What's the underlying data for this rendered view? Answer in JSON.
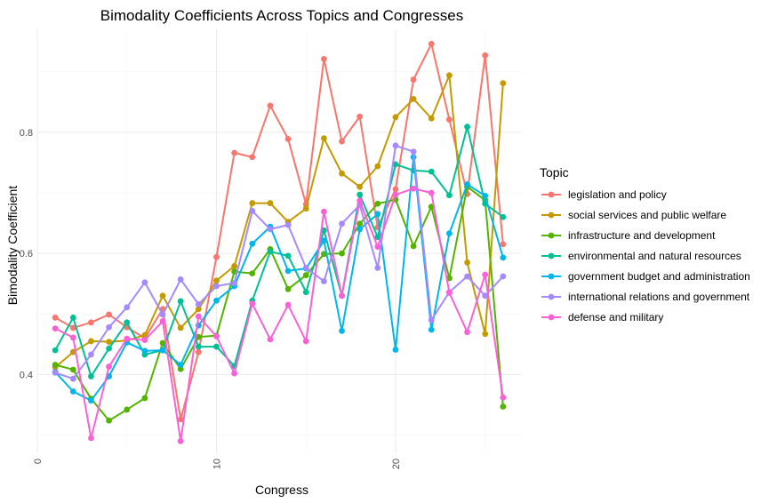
{
  "chart_data": {
    "type": "line",
    "title": "Bimodality Coefficients Across Topics and Congresses",
    "xlabel": "Congress",
    "ylabel": "Bimodality Coefficient",
    "xlim": [
      0,
      27
    ],
    "ylim": [
      0.27,
      0.97
    ],
    "x_ticks": [
      0,
      10,
      20
    ],
    "y_ticks": [
      0.4,
      0.6,
      0.8
    ],
    "grid": true,
    "legend_title": "Topic",
    "legend_position": "right",
    "x": [
      1,
      2,
      3,
      4,
      5,
      6,
      7,
      8,
      9,
      10,
      11,
      12,
      13,
      14,
      15,
      16,
      17,
      18,
      19,
      20,
      21,
      22,
      23,
      24,
      25,
      26
    ],
    "series": [
      {
        "name": "legislation and policy",
        "color": "#F8766D",
        "values": [
          0.494,
          0.477,
          0.486,
          0.499,
          0.478,
          0.46,
          0.508,
          0.326,
          0.437,
          0.594,
          0.766,
          0.759,
          0.844,
          0.789,
          0.681,
          0.921,
          0.785,
          0.826,
          0.643,
          0.706,
          0.887,
          0.946,
          0.821,
          0.698,
          0.927,
          0.615
        ]
      },
      {
        "name": "social services and public welfare",
        "color": "#C49A00",
        "values": [
          0.412,
          0.437,
          0.455,
          0.454,
          0.456,
          0.465,
          0.53,
          0.477,
          0.508,
          0.555,
          0.579,
          0.683,
          0.683,
          0.652,
          0.674,
          0.79,
          0.732,
          0.71,
          0.744,
          0.825,
          0.855,
          0.823,
          0.894,
          0.585,
          0.467,
          0.881
        ]
      },
      {
        "name": "infrastructure and development",
        "color": "#53B400",
        "values": [
          0.416,
          0.408,
          0.36,
          0.324,
          0.342,
          0.361,
          0.452,
          0.409,
          0.462,
          0.464,
          0.57,
          0.567,
          0.607,
          0.541,
          0.564,
          0.599,
          0.6,
          0.649,
          0.682,
          0.689,
          0.612,
          0.677,
          0.559,
          0.71,
          0.688,
          0.347
        ]
      },
      {
        "name": "environmental and natural resources",
        "color": "#00C094",
        "values": [
          0.44,
          0.494,
          0.397,
          0.443,
          0.486,
          0.433,
          0.44,
          0.521,
          0.446,
          0.446,
          0.414,
          0.522,
          0.603,
          0.596,
          0.536,
          0.638,
          0.53,
          0.697,
          0.627,
          0.747,
          0.737,
          0.735,
          0.696,
          0.809,
          0.682,
          0.66
        ]
      },
      {
        "name": "government budget and administration",
        "color": "#00B6EB",
        "values": [
          0.404,
          0.372,
          0.357,
          0.397,
          0.453,
          0.439,
          0.44,
          0.416,
          0.481,
          0.522,
          0.546,
          0.616,
          0.644,
          0.571,
          0.575,
          0.621,
          0.472,
          0.64,
          0.665,
          0.441,
          0.759,
          0.474,
          0.633,
          0.714,
          0.695,
          0.593
        ]
      },
      {
        "name": "international relations and government",
        "color": "#A58AFF",
        "values": [
          0.403,
          0.393,
          0.433,
          0.478,
          0.511,
          0.552,
          0.499,
          0.557,
          0.516,
          0.546,
          0.551,
          0.67,
          0.64,
          0.647,
          0.576,
          0.554,
          0.649,
          0.68,
          0.576,
          0.778,
          0.768,
          0.49,
          0.536,
          0.562,
          0.53,
          0.562
        ]
      },
      {
        "name": "defense and military",
        "color": "#FB61D7",
        "values": [
          0.476,
          0.461,
          0.295,
          0.413,
          0.459,
          0.457,
          0.488,
          0.29,
          0.496,
          0.463,
          0.402,
          0.517,
          0.458,
          0.515,
          0.455,
          0.669,
          0.53,
          0.687,
          0.611,
          0.697,
          0.707,
          0.7,
          0.535,
          0.47,
          0.565,
          0.362
        ]
      }
    ]
  }
}
